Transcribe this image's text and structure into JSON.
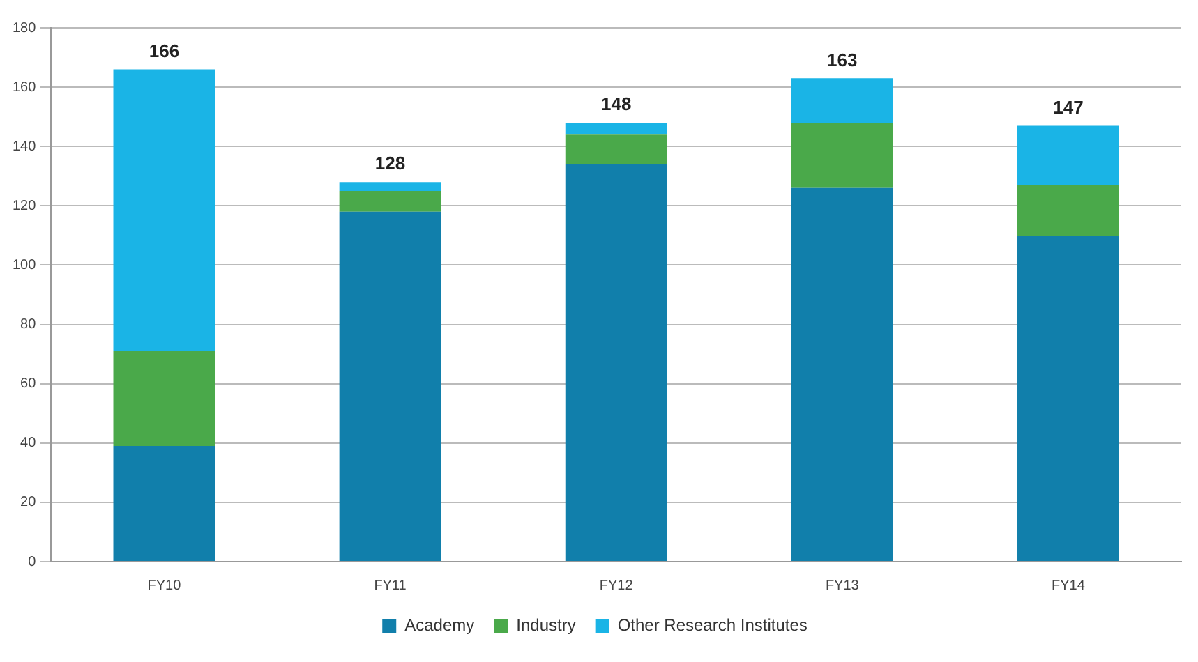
{
  "chart_data": {
    "type": "bar",
    "stacked": true,
    "categories": [
      "FY10",
      "FY11",
      "FY12",
      "FY13",
      "FY14"
    ],
    "series": [
      {
        "name": "Academy",
        "color": "#117fab",
        "values": [
          39,
          118,
          134,
          126,
          110
        ]
      },
      {
        "name": "Industry",
        "color": "#4aa94a",
        "values": [
          32,
          7,
          10,
          22,
          17
        ]
      },
      {
        "name": "Other Research Institutes",
        "color": "#1ab4e6",
        "values": [
          95,
          3,
          4,
          15,
          20
        ]
      }
    ],
    "totals": [
      "166",
      "128",
      "148",
      "163",
      "147"
    ],
    "ylim": [
      0,
      180
    ],
    "yticks": [
      0,
      20,
      40,
      60,
      80,
      100,
      120,
      140,
      160,
      180
    ],
    "grid": "y",
    "legend": "bottom"
  }
}
